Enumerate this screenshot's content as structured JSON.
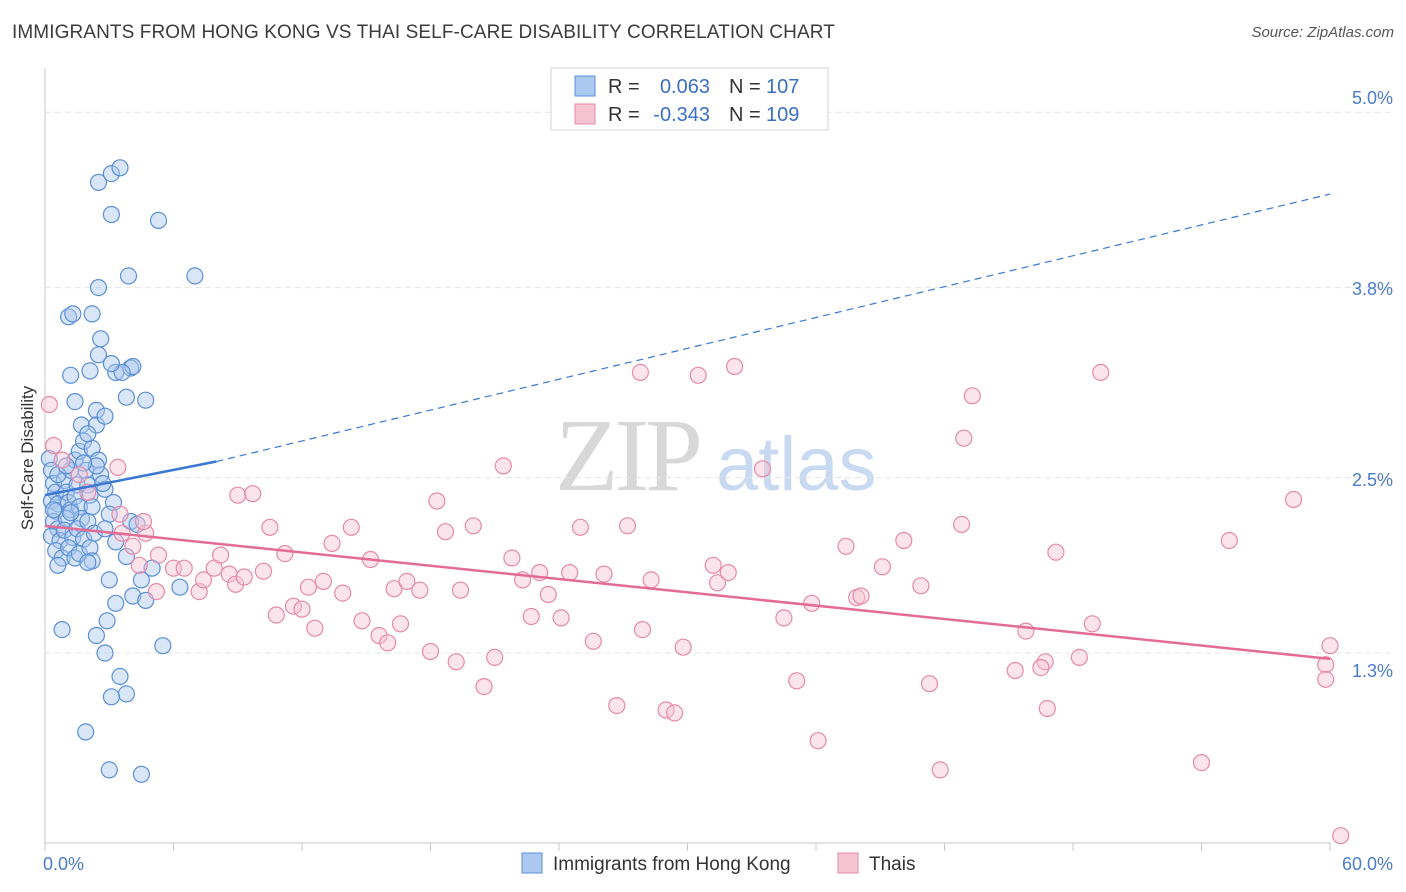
{
  "title": "IMMIGRANTS FROM HONG KONG VS THAI SELF-CARE DISABILITY CORRELATION CHART",
  "source": "Source: ZipAtlas.com",
  "watermark": {
    "zip": "ZIP",
    "atlas": "atlas"
  },
  "colors": {
    "blue_fill": "#aac8f0",
    "blue_stroke": "#5b8fd6",
    "blue_line": "#3a78d4",
    "pink_fill": "#f6c3d3",
    "pink_stroke": "#e58aa8",
    "pink_line": "#e46b95",
    "grid": "#e4e4e4",
    "tick_text": "#4a7cc9"
  },
  "legend": {
    "rows": [
      {
        "r_label": "R =",
        "r_value": "0.063",
        "n_label": "N =",
        "n_value": "107"
      },
      {
        "r_label": "R =",
        "r_value": "-0.343",
        "n_label": "N =",
        "n_value": "109"
      }
    ]
  },
  "bottom_legend": [
    "Immigrants from Hong Kong",
    "Thais"
  ],
  "chart_data": {
    "type": "scatter",
    "title": "IMMIGRANTS FROM HONG KONG VS THAI SELF-CARE DISABILITY CORRELATION CHART",
    "xlabel": "",
    "ylabel": "Self-Care Disability",
    "xlim": [
      0,
      60
    ],
    "ylim": [
      0,
      5.2
    ],
    "x_tick_labels": [
      "0.0%",
      "60.0%"
    ],
    "y_ticks": [
      1.3,
      2.5,
      3.8,
      5.0
    ],
    "y_tick_labels": [
      "1.3%",
      "2.5%",
      "3.8%",
      "5.0%"
    ],
    "grid": true,
    "legend_position": "top-center",
    "series": [
      {
        "name": "Immigrants from Hong Kong",
        "r": 0.063,
        "n": 107,
        "trend": {
          "x0": 0,
          "y0": 2.38,
          "x1": 8,
          "y1": 2.61,
          "dash_x1": 60,
          "dash_y1": 4.44
        },
        "points": [
          [
            0.2,
            2.63
          ],
          [
            0.3,
            2.55
          ],
          [
            0.4,
            2.46
          ],
          [
            0.5,
            2.4
          ],
          [
            0.3,
            2.34
          ],
          [
            0.6,
            2.32
          ],
          [
            0.5,
            2.27
          ],
          [
            0.4,
            2.2
          ],
          [
            0.6,
            2.15
          ],
          [
            0.3,
            2.1
          ],
          [
            0.7,
            2.07
          ],
          [
            0.5,
            2.0
          ],
          [
            0.8,
            1.95
          ],
          [
            0.6,
            1.9
          ],
          [
            0.9,
            2.48
          ],
          [
            1.0,
            2.4
          ],
          [
            1.1,
            2.33
          ],
          [
            1.2,
            2.28
          ],
          [
            1.0,
            2.22
          ],
          [
            0.9,
            2.14
          ],
          [
            1.3,
            2.09
          ],
          [
            1.1,
            2.02
          ],
          [
            1.4,
            1.95
          ],
          [
            1.5,
            2.45
          ],
          [
            1.4,
            2.37
          ],
          [
            1.6,
            2.3
          ],
          [
            1.7,
            2.22
          ],
          [
            1.5,
            2.15
          ],
          [
            1.8,
            2.08
          ],
          [
            1.6,
            1.98
          ],
          [
            1.9,
            2.55
          ],
          [
            2.0,
            2.45
          ],
          [
            2.1,
            2.38
          ],
          [
            2.2,
            2.3
          ],
          [
            2.0,
            2.2
          ],
          [
            2.3,
            2.12
          ],
          [
            2.1,
            2.02
          ],
          [
            2.2,
            1.93
          ],
          [
            1.2,
            2.55
          ],
          [
            1.4,
            2.62
          ],
          [
            1.6,
            2.68
          ],
          [
            1.8,
            2.75
          ],
          [
            2.2,
            2.7
          ],
          [
            2.5,
            2.62
          ],
          [
            2.6,
            2.52
          ],
          [
            2.8,
            2.42
          ],
          [
            3.2,
            2.33
          ],
          [
            3.0,
            2.25
          ],
          [
            2.8,
            2.15
          ],
          [
            2.4,
            2.58
          ],
          [
            1.7,
            2.86
          ],
          [
            2.4,
            2.96
          ],
          [
            2.4,
            2.86
          ],
          [
            2.0,
            2.8
          ],
          [
            1.4,
            3.02
          ],
          [
            1.2,
            3.2
          ],
          [
            1.1,
            3.6
          ],
          [
            1.3,
            3.62
          ],
          [
            2.2,
            3.62
          ],
          [
            2.6,
            3.45
          ],
          [
            2.5,
            3.34
          ],
          [
            3.3,
            3.22
          ],
          [
            4.0,
            3.25
          ],
          [
            4.1,
            3.26
          ],
          [
            3.6,
            3.22
          ],
          [
            2.1,
            3.23
          ],
          [
            2.5,
            3.8
          ],
          [
            4.7,
            3.03
          ],
          [
            3.8,
            3.05
          ],
          [
            2.8,
            2.92
          ],
          [
            3.1,
            3.28
          ],
          [
            3.9,
            3.88
          ],
          [
            7.0,
            3.88
          ],
          [
            5.3,
            4.26
          ],
          [
            2.5,
            4.52
          ],
          [
            3.1,
            4.58
          ],
          [
            3.5,
            4.62
          ],
          [
            3.1,
            4.3
          ],
          [
            4.0,
            2.2
          ],
          [
            4.3,
            2.18
          ],
          [
            3.3,
            2.06
          ],
          [
            3.8,
            1.96
          ],
          [
            4.5,
            1.8
          ],
          [
            5.0,
            1.88
          ],
          [
            6.3,
            1.75
          ],
          [
            2.0,
            1.92
          ],
          [
            3.0,
            1.8
          ],
          [
            4.1,
            1.69
          ],
          [
            4.7,
            1.66
          ],
          [
            3.3,
            1.64
          ],
          [
            2.9,
            1.52
          ],
          [
            2.4,
            1.42
          ],
          [
            0.8,
            1.46
          ],
          [
            2.8,
            1.3
          ],
          [
            5.5,
            1.35
          ],
          [
            3.5,
            1.14
          ],
          [
            3.8,
            1.02
          ],
          [
            3.1,
            1.0
          ],
          [
            1.9,
            0.76
          ],
          [
            3.0,
            0.5
          ],
          [
            4.5,
            0.47
          ],
          [
            0.6,
            2.52
          ],
          [
            1.0,
            2.58
          ],
          [
            1.8,
            2.6
          ],
          [
            0.4,
            2.28
          ],
          [
            1.2,
            2.26
          ],
          [
            2.7,
            2.46
          ]
        ]
      },
      {
        "name": "Thais",
        "r": -0.343,
        "n": 109,
        "trend": {
          "x0": 0,
          "y0": 2.17,
          "x1": 60,
          "y1": 1.26
        },
        "points": [
          [
            0.2,
            3.0
          ],
          [
            0.4,
            2.72
          ],
          [
            0.8,
            2.62
          ],
          [
            1.6,
            2.52
          ],
          [
            2.0,
            2.4
          ],
          [
            3.4,
            2.57
          ],
          [
            3.5,
            2.25
          ],
          [
            4.7,
            2.12
          ],
          [
            3.6,
            2.12
          ],
          [
            4.1,
            2.03
          ],
          [
            4.4,
            1.9
          ],
          [
            4.6,
            2.2
          ],
          [
            5.2,
            1.72
          ],
          [
            6.0,
            1.88
          ],
          [
            5.3,
            1.97
          ],
          [
            6.5,
            1.88
          ],
          [
            7.2,
            1.72
          ],
          [
            7.4,
            1.8
          ],
          [
            7.9,
            1.88
          ],
          [
            8.2,
            1.97
          ],
          [
            8.6,
            1.84
          ],
          [
            9.0,
            2.38
          ],
          [
            8.9,
            1.77
          ],
          [
            9.3,
            1.82
          ],
          [
            9.7,
            2.39
          ],
          [
            10.2,
            1.86
          ],
          [
            10.5,
            2.16
          ],
          [
            10.8,
            1.56
          ],
          [
            11.2,
            1.98
          ],
          [
            11.6,
            1.62
          ],
          [
            12.0,
            1.6
          ],
          [
            12.3,
            1.75
          ],
          [
            12.6,
            1.47
          ],
          [
            13.0,
            1.79
          ],
          [
            13.4,
            2.05
          ],
          [
            13.9,
            1.71
          ],
          [
            14.3,
            2.16
          ],
          [
            14.8,
            1.52
          ],
          [
            15.2,
            1.94
          ],
          [
            15.6,
            1.42
          ],
          [
            16.0,
            1.37
          ],
          [
            16.3,
            1.74
          ],
          [
            16.6,
            1.5
          ],
          [
            16.9,
            1.79
          ],
          [
            17.5,
            1.73
          ],
          [
            18.0,
            1.31
          ],
          [
            18.3,
            2.34
          ],
          [
            18.7,
            2.13
          ],
          [
            19.2,
            1.24
          ],
          [
            19.4,
            1.73
          ],
          [
            20.0,
            2.17
          ],
          [
            20.5,
            1.07
          ],
          [
            21.0,
            1.27
          ],
          [
            21.4,
            2.58
          ],
          [
            21.8,
            1.95
          ],
          [
            22.3,
            1.8
          ],
          [
            22.7,
            1.55
          ],
          [
            23.1,
            1.85
          ],
          [
            23.5,
            1.7
          ],
          [
            24.1,
            1.54
          ],
          [
            24.5,
            1.85
          ],
          [
            25.0,
            2.16
          ],
          [
            25.6,
            1.38
          ],
          [
            26.1,
            1.84
          ],
          [
            26.7,
            0.94
          ],
          [
            27.2,
            2.17
          ],
          [
            27.8,
            3.22
          ],
          [
            27.9,
            1.46
          ],
          [
            28.3,
            1.8
          ],
          [
            29.0,
            0.91
          ],
          [
            29.4,
            0.89
          ],
          [
            29.8,
            1.34
          ],
          [
            30.5,
            3.2
          ],
          [
            31.2,
            1.9
          ],
          [
            31.4,
            1.78
          ],
          [
            31.9,
            1.85
          ],
          [
            32.2,
            3.26
          ],
          [
            33.5,
            2.56
          ],
          [
            34.5,
            1.54
          ],
          [
            35.1,
            1.11
          ],
          [
            35.8,
            1.64
          ],
          [
            36.1,
            0.7
          ],
          [
            37.4,
            2.03
          ],
          [
            37.9,
            1.68
          ],
          [
            38.1,
            1.69
          ],
          [
            39.1,
            1.89
          ],
          [
            40.1,
            2.07
          ],
          [
            40.9,
            1.76
          ],
          [
            41.3,
            1.09
          ],
          [
            41.8,
            0.5
          ],
          [
            42.8,
            2.18
          ],
          [
            42.9,
            2.77
          ],
          [
            43.3,
            3.06
          ],
          [
            45.3,
            1.18
          ],
          [
            45.8,
            1.45
          ],
          [
            46.7,
            1.24
          ],
          [
            46.8,
            0.92
          ],
          [
            46.5,
            1.2
          ],
          [
            47.2,
            1.99
          ],
          [
            48.3,
            1.27
          ],
          [
            48.9,
            1.5
          ],
          [
            49.3,
            3.22
          ],
          [
            54.0,
            0.55
          ],
          [
            55.3,
            2.07
          ],
          [
            58.3,
            2.35
          ],
          [
            59.8,
            1.22
          ],
          [
            59.8,
            1.12
          ],
          [
            60.0,
            1.35
          ],
          [
            60.5,
            0.05
          ]
        ]
      }
    ]
  }
}
